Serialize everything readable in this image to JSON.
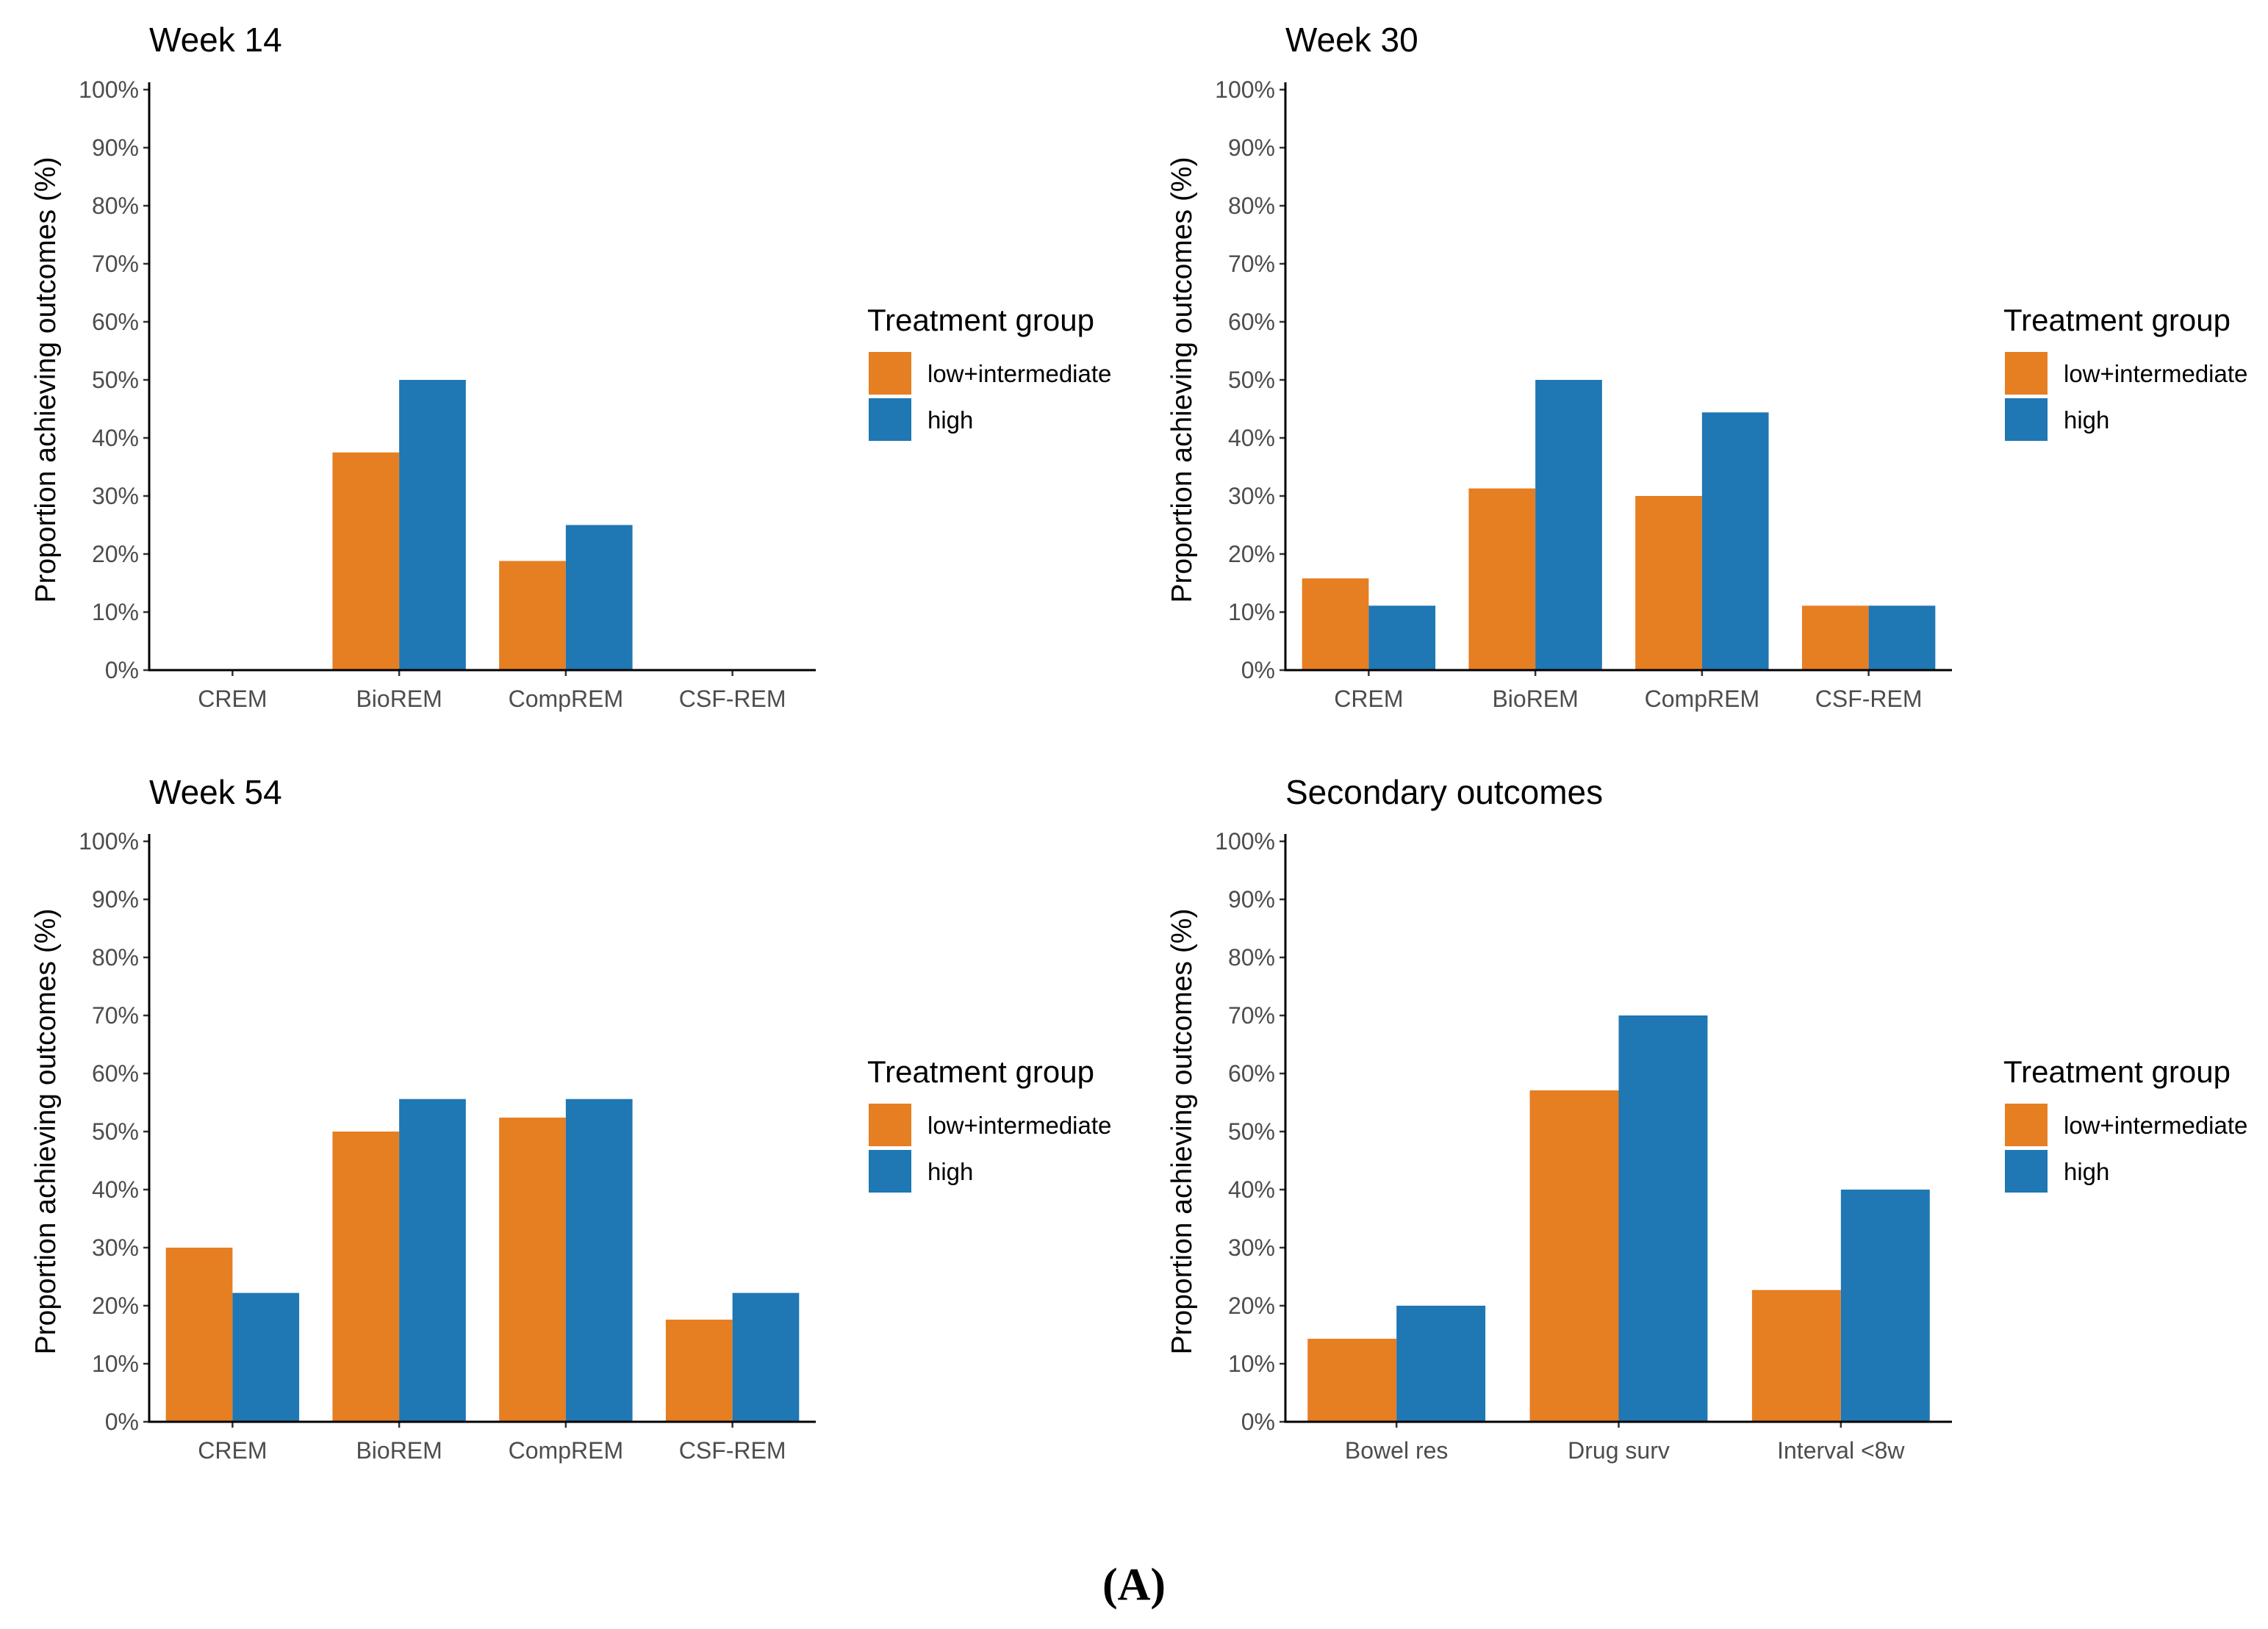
{
  "colors": {
    "low_intermediate": "#e67e22",
    "high": "#1f77b4"
  },
  "caption": "(A)",
  "chart_data": [
    {
      "type": "bar",
      "title": "Week 14",
      "ylabel": "Proportion achieving outcomes (%)",
      "xlabel": "",
      "ylim": [
        0,
        100
      ],
      "yticks": [
        "0%",
        "10%",
        "20%",
        "30%",
        "40%",
        "50%",
        "60%",
        "70%",
        "80%",
        "90%",
        "100%"
      ],
      "categories": [
        "CREM",
        "BioREM",
        "CompREM",
        "CSF-REM"
      ],
      "legend": {
        "title": "Treatment group",
        "placement": "right",
        "entries": [
          "low+intermediate",
          "high"
        ]
      },
      "series": [
        {
          "name": "low+intermediate",
          "color": "#e67e22",
          "values": [
            0,
            37.5,
            18.8,
            0
          ]
        },
        {
          "name": "high",
          "color": "#1f77b4",
          "values": [
            0,
            50,
            25,
            0
          ]
        }
      ]
    },
    {
      "type": "bar",
      "title": "Week 30",
      "ylabel": "Proportion achieving outcomes (%)",
      "xlabel": "",
      "ylim": [
        0,
        100
      ],
      "yticks": [
        "0%",
        "10%",
        "20%",
        "30%",
        "40%",
        "50%",
        "60%",
        "70%",
        "80%",
        "90%",
        "100%"
      ],
      "categories": [
        "CREM",
        "BioREM",
        "CompREM",
        "CSF-REM"
      ],
      "legend": {
        "title": "Treatment group",
        "placement": "right",
        "entries": [
          "low+intermediate",
          "high"
        ]
      },
      "series": [
        {
          "name": "low+intermediate",
          "color": "#e67e22",
          "values": [
            15.8,
            31.3,
            30,
            11.1
          ]
        },
        {
          "name": "high",
          "color": "#1f77b4",
          "values": [
            11.1,
            50,
            44.4,
            11.1
          ]
        }
      ]
    },
    {
      "type": "bar",
      "title": "Week 54",
      "ylabel": "Proportion achieving outcomes (%)",
      "xlabel": "",
      "ylim": [
        0,
        100
      ],
      "yticks": [
        "0%",
        "10%",
        "20%",
        "30%",
        "40%",
        "50%",
        "60%",
        "70%",
        "80%",
        "90%",
        "100%"
      ],
      "categories": [
        "CREM",
        "BioREM",
        "CompREM",
        "CSF-REM"
      ],
      "legend": {
        "title": "Treatment group",
        "placement": "right",
        "entries": [
          "low+intermediate",
          "high"
        ]
      },
      "series": [
        {
          "name": "low+intermediate",
          "color": "#e67e22",
          "values": [
            30,
            50,
            52.4,
            17.6
          ]
        },
        {
          "name": "high",
          "color": "#1f77b4",
          "values": [
            22.2,
            55.6,
            55.6,
            22.2
          ]
        }
      ]
    },
    {
      "type": "bar",
      "title": "Secondary outcomes",
      "ylabel": "Proportion achieving outcomes (%)",
      "xlabel": "",
      "ylim": [
        0,
        100
      ],
      "yticks": [
        "0%",
        "10%",
        "20%",
        "30%",
        "40%",
        "50%",
        "60%",
        "70%",
        "80%",
        "90%",
        "100%"
      ],
      "categories": [
        "Bowel res",
        "Drug surv",
        "Interval <8w"
      ],
      "legend": {
        "title": "Treatment group",
        "placement": "right",
        "entries": [
          "low+intermediate",
          "high"
        ]
      },
      "series": [
        {
          "name": "low+intermediate",
          "color": "#e67e22",
          "values": [
            14.3,
            57.1,
            22.7
          ]
        },
        {
          "name": "high",
          "color": "#1f77b4",
          "values": [
            20,
            70,
            40
          ]
        }
      ]
    }
  ]
}
